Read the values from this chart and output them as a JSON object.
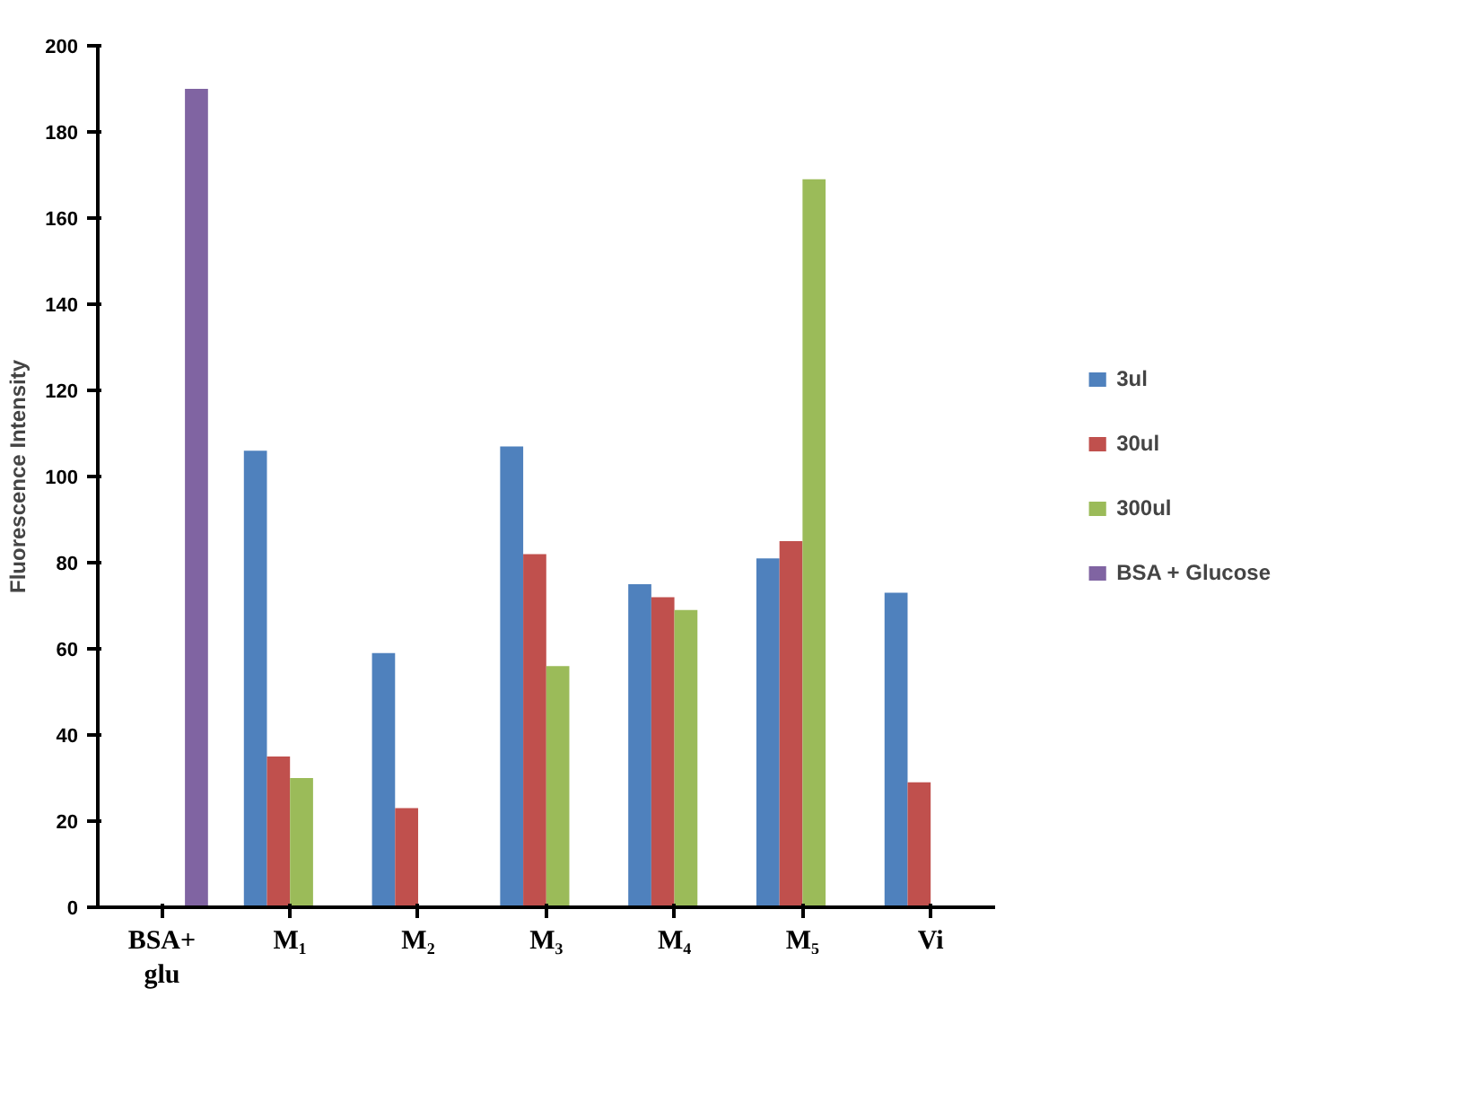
{
  "chart_data": {
    "type": "bar",
    "ylabel": "Fluorescence Intensity",
    "categories": [
      "BSA+\nglu",
      "M₁",
      "M₂",
      "M₃",
      "M₄",
      "M₅",
      "Vi"
    ],
    "series": [
      {
        "name": "3ul",
        "color": "#4f81bd",
        "values": [
          null,
          106,
          59,
          107,
          75,
          81,
          73
        ]
      },
      {
        "name": "30ul",
        "color": "#c0504d",
        "values": [
          null,
          35,
          23,
          82,
          72,
          85,
          29
        ]
      },
      {
        "name": "300ul",
        "color": "#9bbb59",
        "values": [
          null,
          30,
          0,
          56,
          69,
          169,
          null
        ]
      },
      {
        "name": "BSA + Glucose",
        "color": "#8064a2",
        "values": [
          190,
          null,
          null,
          null,
          null,
          null,
          null
        ]
      }
    ],
    "ylim": [
      0,
      200
    ],
    "yticks": [
      0,
      20,
      40,
      60,
      80,
      100,
      120,
      140,
      160,
      180,
      200
    ],
    "grid": false,
    "legend": "right"
  }
}
